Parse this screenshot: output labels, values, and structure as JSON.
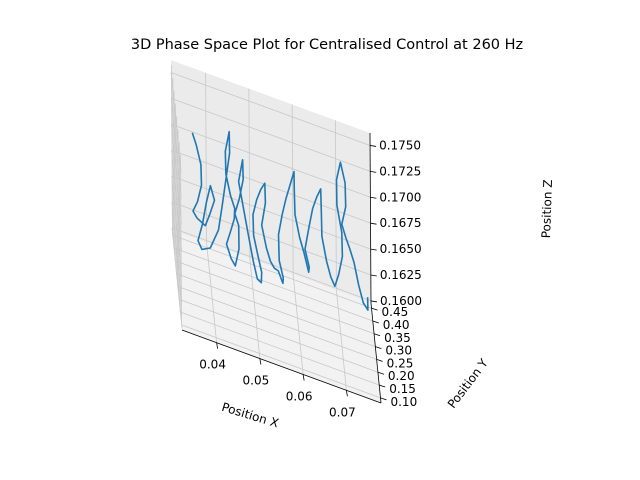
{
  "chart_data": {
    "type": "line3d",
    "title": "3D Phase Space Plot for Centralised Control at 260 Hz",
    "xlabel": "Position X",
    "ylabel": "Position Y",
    "zlabel": "Position Z",
    "x_ticks": [
      "0.04",
      "0.05",
      "0.06",
      "0.07"
    ],
    "y_ticks": [
      "0.10",
      "0.15",
      "0.20",
      "0.25",
      "0.30",
      "0.35",
      "0.40",
      "0.45"
    ],
    "z_ticks": [
      "0.1600",
      "0.1625",
      "0.1650",
      "0.1675",
      "0.1700",
      "0.1725",
      "0.1750"
    ],
    "xlim": [
      0.032,
      0.078
    ],
    "ylim": [
      0.08,
      0.47
    ],
    "zlim": [
      0.1598,
      0.1762
    ],
    "grid": true,
    "line_color": "#1f77b4",
    "series": [
      {
        "points": [
          [
            0.036,
            0.32,
            0.1735
          ],
          [
            0.037,
            0.34,
            0.172
          ],
          [
            0.038,
            0.33,
            0.1705
          ],
          [
            0.038,
            0.31,
            0.169
          ],
          [
            0.037,
            0.3,
            0.1675
          ],
          [
            0.036,
            0.31,
            0.1662
          ],
          [
            0.037,
            0.33,
            0.1652
          ],
          [
            0.039,
            0.34,
            0.1645
          ],
          [
            0.04,
            0.33,
            0.166
          ],
          [
            0.041,
            0.31,
            0.168
          ],
          [
            0.04,
            0.3,
            0.1695
          ],
          [
            0.039,
            0.29,
            0.168
          ],
          [
            0.038,
            0.28,
            0.166
          ],
          [
            0.037,
            0.29,
            0.164
          ],
          [
            0.038,
            0.31,
            0.1628
          ],
          [
            0.04,
            0.32,
            0.163
          ],
          [
            0.042,
            0.33,
            0.1648
          ],
          [
            0.043,
            0.35,
            0.1668
          ],
          [
            0.044,
            0.37,
            0.169
          ],
          [
            0.045,
            0.39,
            0.1712
          ],
          [
            0.045,
            0.4,
            0.173
          ],
          [
            0.044,
            0.39,
            0.1712
          ],
          [
            0.044,
            0.37,
            0.1695
          ],
          [
            0.045,
            0.36,
            0.1678
          ],
          [
            0.046,
            0.37,
            0.1665
          ],
          [
            0.046,
            0.39,
            0.165
          ],
          [
            0.045,
            0.38,
            0.1638
          ],
          [
            0.044,
            0.36,
            0.163
          ],
          [
            0.045,
            0.35,
            0.162
          ],
          [
            0.046,
            0.36,
            0.1612
          ],
          [
            0.047,
            0.38,
            0.1625
          ],
          [
            0.047,
            0.39,
            0.1645
          ],
          [
            0.046,
            0.37,
            0.166
          ],
          [
            0.047,
            0.36,
            0.1678
          ],
          [
            0.048,
            0.37,
            0.1696
          ],
          [
            0.048,
            0.39,
            0.171
          ],
          [
            0.047,
            0.38,
            0.169
          ],
          [
            0.048,
            0.36,
            0.167
          ],
          [
            0.049,
            0.34,
            0.165
          ],
          [
            0.05,
            0.33,
            0.163
          ],
          [
            0.051,
            0.34,
            0.1612
          ],
          [
            0.052,
            0.36,
            0.1605
          ],
          [
            0.052,
            0.34,
            0.162
          ],
          [
            0.051,
            0.32,
            0.164
          ],
          [
            0.05,
            0.31,
            0.166
          ],
          [
            0.05,
            0.33,
            0.1675
          ],
          [
            0.051,
            0.35,
            0.1686
          ],
          [
            0.052,
            0.36,
            0.1695
          ],
          [
            0.053,
            0.37,
            0.17
          ],
          [
            0.053,
            0.35,
            0.1686
          ],
          [
            0.052,
            0.33,
            0.1668
          ],
          [
            0.053,
            0.32,
            0.165
          ],
          [
            0.054,
            0.33,
            0.1636
          ],
          [
            0.055,
            0.35,
            0.1626
          ],
          [
            0.056,
            0.37,
            0.162
          ],
          [
            0.057,
            0.36,
            0.1612
          ],
          [
            0.057,
            0.34,
            0.1622
          ],
          [
            0.056,
            0.33,
            0.164
          ],
          [
            0.056,
            0.35,
            0.166
          ],
          [
            0.057,
            0.37,
            0.1676
          ],
          [
            0.058,
            0.39,
            0.1688
          ],
          [
            0.059,
            0.4,
            0.17
          ],
          [
            0.06,
            0.41,
            0.1712
          ],
          [
            0.06,
            0.4,
            0.1696
          ],
          [
            0.06,
            0.38,
            0.1678
          ],
          [
            0.061,
            0.37,
            0.166
          ],
          [
            0.062,
            0.38,
            0.1645
          ],
          [
            0.063,
            0.36,
            0.1632
          ],
          [
            0.063,
            0.34,
            0.1642
          ],
          [
            0.062,
            0.33,
            0.166
          ],
          [
            0.063,
            0.34,
            0.168
          ],
          [
            0.064,
            0.36,
            0.1695
          ],
          [
            0.065,
            0.37,
            0.1705
          ],
          [
            0.066,
            0.38,
            0.1712
          ],
          [
            0.066,
            0.36,
            0.1696
          ],
          [
            0.066,
            0.34,
            0.1676
          ],
          [
            0.067,
            0.33,
            0.1656
          ],
          [
            0.068,
            0.34,
            0.164
          ],
          [
            0.069,
            0.35,
            0.163
          ],
          [
            0.07,
            0.37,
            0.1638
          ],
          [
            0.071,
            0.39,
            0.1652
          ],
          [
            0.071,
            0.41,
            0.167
          ],
          [
            0.07,
            0.43,
            0.169
          ],
          [
            0.07,
            0.44,
            0.1712
          ],
          [
            0.071,
            0.45,
            0.1728
          ],
          [
            0.072,
            0.44,
            0.1712
          ],
          [
            0.072,
            0.42,
            0.1694
          ],
          [
            0.071,
            0.41,
            0.1678
          ],
          [
            0.072,
            0.42,
            0.1664
          ],
          [
            0.073,
            0.44,
            0.165
          ],
          [
            0.074,
            0.45,
            0.1636
          ],
          [
            0.075,
            0.44,
            0.1618
          ],
          [
            0.076,
            0.43,
            0.1605
          ],
          [
            0.077,
            0.42,
            0.1602
          ],
          [
            0.077,
            0.43,
            0.1612
          ]
        ]
      }
    ]
  }
}
